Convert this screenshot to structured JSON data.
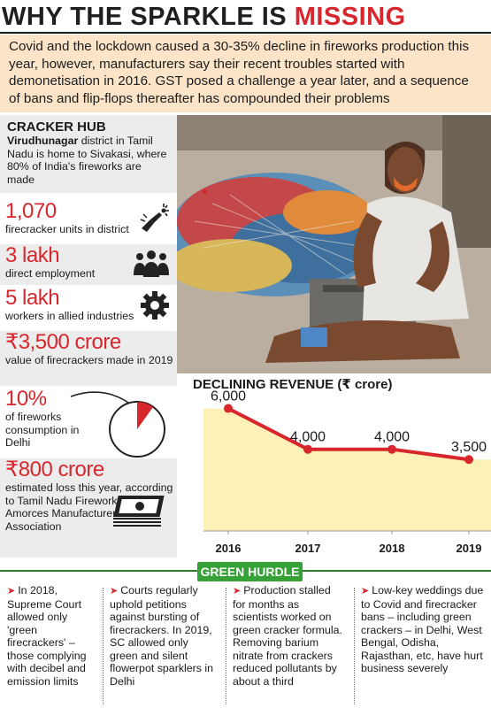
{
  "title": {
    "part1": "WHY THE SPARKLE IS ",
    "part2": "MISSING"
  },
  "intro": "Covid and the lockdown caused a 30-35% decline in fireworks production this year, however, manufacturers say their recent troubles started with demonetisation in 2016. GST posed a challenge a year later, and a sequence of bans and flip-flops thereafter has compounded their problems",
  "hub": {
    "heading": "CRACKER HUB",
    "district": "Virudhunagar",
    "text": " district in Tamil Nadu is home to Sivakasi, where 80% of India's fireworks are made"
  },
  "stats": [
    {
      "value": "1,070",
      "label": "firecracker units in district",
      "icon": "hand-sparkler-icon"
    },
    {
      "value": "3 lakh",
      "label": "direct employment",
      "icon": "people-group-icon"
    },
    {
      "value": "5 lakh",
      "label": "workers in allied industries",
      "icon": "gear-icon"
    },
    {
      "value": "₹3,500 crore",
      "label": "value of firecrackers made in 2019"
    },
    {
      "value": "10%",
      "label": "of fireworks consumption in Delhi",
      "icon": "pie-chart-icon"
    },
    {
      "value": "₹800 crore",
      "label": "estimated loss this year, according to Tamil Nadu Fireworks and Amorces Manufacturers' Association",
      "icon": "money-stack-icon"
    }
  ],
  "photo": {
    "description_icon": "worker-with-fireworks-photo"
  },
  "colors": {
    "accent": "#d8262d",
    "intro_bg": "#fbe4c8",
    "green": "#36a136",
    "chart_fill": "#fdf1b8"
  },
  "chart_data": {
    "type": "area",
    "title": "DECLINING REVENUE (₹ crore)",
    "categories": [
      "2016",
      "2017",
      "2018",
      "2019"
    ],
    "values": [
      6000,
      4000,
      4000,
      3500
    ],
    "labels": [
      "6,000",
      "4,000",
      "4,000",
      "3,500"
    ],
    "ylim": [
      0,
      6500
    ],
    "grid": false
  },
  "green_hurdle": {
    "heading": "GREEN HURDLE",
    "points": [
      "In 2018, Supreme Court allowed only 'green firecrackers' – those complying with decibel and emission limits",
      "Courts regularly uphold petitions against bursting of firecrackers. In 2019, SC allowed only green and silent flowerpot sparklers in Delhi",
      "Production stalled for months as scientists worked on green cracker formula. Removing barium nitrate from crackers reduced pollutants by about a third",
      "Low-key weddings due to Covid and firecracker bans – including green crackers – in Delhi, West Bengal, Odisha, Rajasthan, etc, have hurt business severely"
    ],
    "arrow": "➤"
  }
}
